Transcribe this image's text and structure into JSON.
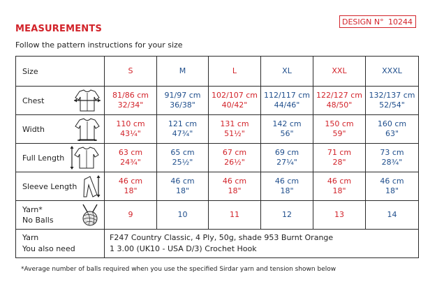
{
  "design": {
    "label": "DESIGN N°",
    "number": "10244"
  },
  "heading": "MEASUREMENTS",
  "subtitle": "Follow the pattern instructions for your size",
  "size_header": "Size",
  "sizes": [
    "S",
    "M",
    "L",
    "XL",
    "XXL",
    "XXXL"
  ],
  "rows": [
    {
      "label": "Chest",
      "values": [
        [
          "81/86 cm",
          "32/34\""
        ],
        [
          "91/97 cm",
          "36/38\""
        ],
        [
          "102/107 cm",
          "40/42\""
        ],
        [
          "112/117 cm",
          "44/46\""
        ],
        [
          "122/127 cm",
          "48/50\""
        ],
        [
          "132/137 cm",
          "52/54\""
        ]
      ]
    },
    {
      "label": "Width",
      "values": [
        [
          "110 cm",
          "43¼\""
        ],
        [
          "121 cm",
          "47¾\""
        ],
        [
          "131 cm",
          "51½\""
        ],
        [
          "142 cm",
          "56\""
        ],
        [
          "150 cm",
          "59\""
        ],
        [
          "160 cm",
          "63\""
        ]
      ]
    },
    {
      "label": "Full Length",
      "values": [
        [
          "63 cm",
          "24¾\""
        ],
        [
          "65 cm",
          "25½\""
        ],
        [
          "67 cm",
          "26½\""
        ],
        [
          "69 cm",
          "27¼\""
        ],
        [
          "71 cm",
          "28\""
        ],
        [
          "73 cm",
          "28¾\""
        ]
      ]
    },
    {
      "label": "Sleeve Length",
      "values": [
        [
          "46 cm",
          "18\""
        ],
        [
          "46 cm",
          "18\""
        ],
        [
          "46 cm",
          "18\""
        ],
        [
          "46 cm",
          "18\""
        ],
        [
          "46 cm",
          "18\""
        ],
        [
          "46 cm",
          "18\""
        ]
      ]
    }
  ],
  "yarn": {
    "label_line1": "Yarn*",
    "label_line2": "No Balls",
    "values": [
      "9",
      "10",
      "11",
      "12",
      "13",
      "14"
    ]
  },
  "bottom": {
    "label_line1": "Yarn",
    "label_line2": "You also need",
    "value_line1": "F247 Country Classic, 4 Ply, 50g, shade 953 Burnt Orange",
    "value_line2": "1 3.00 (UK10 - USA D/3) Crochet Hook"
  },
  "footnote": "*Average number of balls required when you use the specified Sirdar yarn and tension shown below",
  "colors": {
    "accent_red": "#d2232a",
    "accent_blue": "#1f4e8c"
  },
  "icons": [
    "chest-garment-icon",
    "width-garment-icon",
    "length-garment-icon",
    "sleeve-garment-icon",
    "yarn-ball-icon"
  ]
}
